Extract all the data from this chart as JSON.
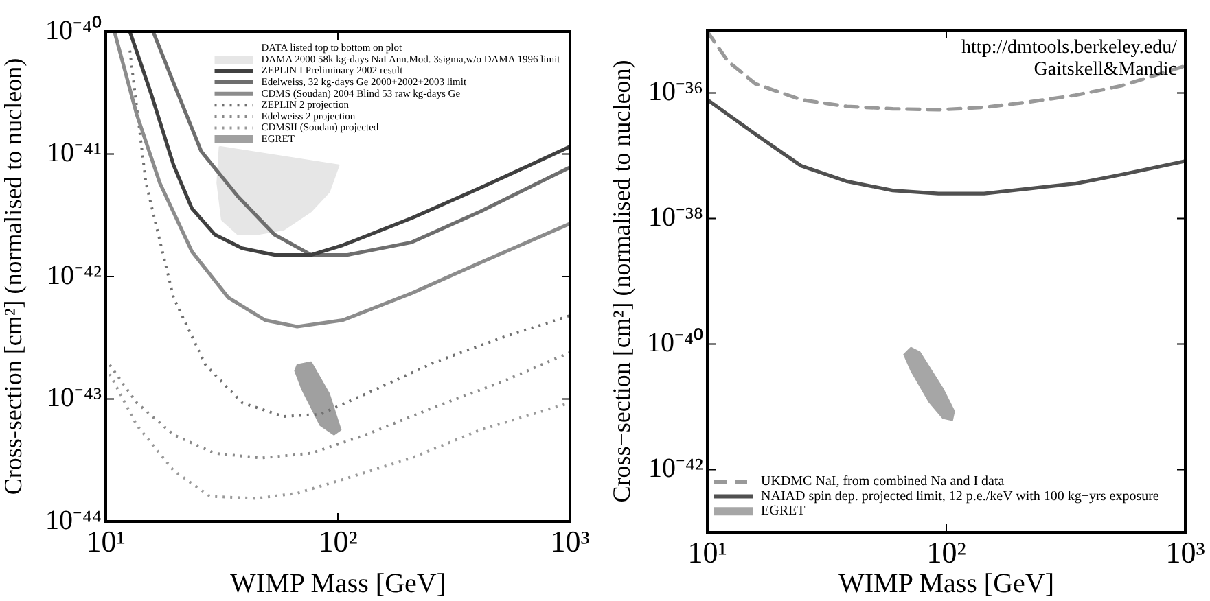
{
  "chart_data": [
    {
      "type": "line",
      "xlabel": "WIMP Mass [GeV]",
      "ylabel": "Cross-section [cm²] (normalised to nucleon)",
      "legend_title": "DATA listed top to bottom on plot",
      "log": "xy",
      "grid": false,
      "legend": "top right",
      "xlim": [
        10,
        1000
      ],
      "xticks": [
        {
          "value": 10,
          "label": "10¹"
        },
        {
          "value": 100,
          "label": "10²"
        },
        {
          "value": 1000,
          "label": "10³"
        }
      ],
      "ylim": [
        1e-44,
        1e-40
      ],
      "yticks": [
        {
          "value": 1e-44,
          "label": "10⁻⁴⁴"
        },
        {
          "value": 1e-43,
          "label": "10⁻⁴³"
        },
        {
          "value": 1e-42,
          "label": "10⁻⁴²"
        },
        {
          "value": 1e-41,
          "label": "10⁻⁴¹"
        },
        {
          "value": 1e-40,
          "label": "10⁻⁴⁰"
        }
      ],
      "series": [
        {
          "name": "DAMA 2000 58k kg-days NaI Ann.Mod. 3sigma,w/o DAMA 1996 limit",
          "type": "area",
          "color": "#e6e6e6",
          "x": [
            30.9,
            101,
            91.8,
            76.7,
            58.3,
            44.5,
            37.1,
            31.6,
            30.2,
            30.9
          ],
          "values": [
            1.15e-41,
            8.1e-42,
            4.9e-42,
            3.4e-42,
            2.4e-42,
            2.2e-42,
            2.2e-42,
            2.9e-42,
            5.8e-42,
            1.15e-41
          ]
        },
        {
          "name": "ZEPLIN I Preliminary 2002 result",
          "line_style": "solid",
          "color": "#404040",
          "x": [
            12.7,
            15.6,
            19.6,
            23.5,
            29.5,
            38.7,
            53.3,
            76.7,
            105,
            208,
            412,
            1000
          ],
          "values": [
            1e-40,
            3.2e-41,
            8.1e-42,
            3.6e-42,
            2.2e-42,
            1.7e-42,
            1.5e-42,
            1.5e-42,
            1.8e-42,
            3e-42,
            5.3e-42,
            1.15e-41
          ]
        },
        {
          "name": "Edelweiss, 32 kg-days Ge 2000+2002+2003 limit",
          "line_style": "solid",
          "color": "#6e6e6e",
          "x": [
            16.0,
            19.6,
            25.8,
            37.1,
            53.3,
            76.7,
            110,
            208,
            412,
            1000
          ],
          "values": [
            1e-40,
            3.8e-41,
            1.05e-41,
            4.5e-42,
            2.2e-42,
            1.5e-42,
            1.5e-42,
            1.9e-42,
            3.4e-42,
            7.8e-42
          ]
        },
        {
          "name": "CDMS (Soudan) 2004 Blind 53 raw kg-days Ge",
          "line_style": "solid",
          "color": "#8c8c8c",
          "x": [
            10.9,
            13.6,
            17.1,
            23.5,
            33.8,
            48.6,
            66.8,
            105,
            208,
            412,
            1000
          ],
          "values": [
            1e-40,
            2.1e-41,
            5.8e-42,
            1.6e-42,
            6.7e-43,
            4.4e-43,
            3.9e-43,
            4.4e-43,
            7.3e-43,
            1.3e-42,
            2.7e-42
          ]
        },
        {
          "name": "ZEPLIN 2 projection",
          "line_style": "dotted",
          "color": "#707070",
          "x": [
            12.7,
            14.9,
            19.6,
            26.9,
            38.7,
            58.3,
            83.9,
            132,
            262,
            518,
            1000
          ],
          "values": [
            7e-41,
            5.8e-42,
            6.7e-43,
            1.9e-43,
            9.3e-44,
            7.2e-44,
            7.5e-44,
            1.1e-43,
            2e-43,
            3.2e-43,
            4.8e-43
          ]
        },
        {
          "name": "Edelweiss 2 projection",
          "line_style": "dotted",
          "color": "#8a8a8a",
          "x": [
            10.4,
            13.6,
            19.6,
            29.5,
            46.5,
            76.7,
            132,
            262,
            518,
            1000
          ],
          "values": [
            1.9e-43,
            9.3e-44,
            5.1e-44,
            3.6e-44,
            3.3e-44,
            3.6e-44,
            5.1e-44,
            8.6e-44,
            1.4e-43,
            2.4e-43
          ]
        },
        {
          "name": "CDMSII (Soudan) projected",
          "line_style": "dotted",
          "color": "#9a9a9a",
          "x": [
            10.4,
            13.6,
            19.6,
            28.2,
            44.5,
            66.8,
            105,
            208,
            412,
            1000
          ],
          "values": [
            1.6e-43,
            6.1e-44,
            2.6e-44,
            1.6e-44,
            1.54e-44,
            1.7e-44,
            2.2e-44,
            3.3e-44,
            5.6e-44,
            9.3e-44
          ]
        },
        {
          "name": "EGRET",
          "type": "area",
          "color": "#a0a0a0",
          "x": [
            66.8,
            76.7,
            91.8,
            103,
            96.2,
            83.9,
            70.0,
            65.3,
            66.8
          ],
          "values": [
            1.9e-43,
            2e-43,
            1.1e-43,
            5.6e-44,
            5.1e-44,
            6.1e-44,
            1.2e-43,
            1.7e-43,
            1.9e-43
          ]
        }
      ]
    },
    {
      "type": "line",
      "xlabel": "WIMP Mass [GeV]",
      "ylabel": "Cross−section [cm²] (normalised to nucleon)",
      "log": "xy",
      "grid": false,
      "legend": "bottom left",
      "annotations": [
        "http://dmtools.berkeley.edu/",
        "Gaitskell&Mandic"
      ],
      "xlim": [
        10,
        1000
      ],
      "xticks": [
        {
          "value": 10,
          "label": "10¹"
        },
        {
          "value": 100,
          "label": "10²"
        },
        {
          "value": 1000,
          "label": "10³"
        }
      ],
      "ylim": [
        1e-43,
        1e-35
      ],
      "yticks": [
        {
          "value": 1e-42,
          "label": "10⁻⁴²"
        },
        {
          "value": 1e-40,
          "label": "10⁻⁴⁰"
        },
        {
          "value": 1e-38,
          "label": "10⁻³⁸"
        },
        {
          "value": 1e-36,
          "label": "10⁻³⁶"
        }
      ],
      "series": [
        {
          "name": "UKDMC NaI, from combined Na and I data",
          "line_style": "dashed",
          "color": "#999999",
          "x": [
            10,
            12.2,
            15.9,
            24.7,
            38.4,
            59.6,
            92.7,
            144,
            223,
            347,
            540,
            1000
          ],
          "values": [
            9.5e-36,
            3.2e-36,
            1.4e-36,
            7.8e-37,
            6.1e-37,
            5.6e-37,
            5.4e-37,
            5.9e-37,
            7.2e-37,
            9.2e-37,
            1.3e-36,
            2.7e-36
          ]
        },
        {
          "name": "NAIAD spin dep. projected limit, 12 p.e./keV with 100 kg−yrs exposure",
          "line_style": "solid",
          "color": "#505050",
          "x": [
            10,
            15.9,
            24.7,
            38.4,
            59.6,
            92.7,
            144,
            223,
            347,
            540,
            1000
          ],
          "values": [
            7.8e-37,
            2.2e-37,
            6.9e-38,
            3.9e-38,
            2.8e-38,
            2.5e-38,
            2.5e-38,
            3e-38,
            3.6e-38,
            5e-38,
            8.2e-38
          ]
        },
        {
          "name": "EGRET",
          "type": "area",
          "color": "#a6a6a6",
          "x": [
            71.1,
            77.6,
            96.8,
            108,
            106,
            96.8,
            84.7,
            71.1,
            66.5,
            71.1
          ],
          "values": [
            8.8e-41,
            7.4e-41,
            1.95e-41,
            8.5e-42,
            6.1e-42,
            6.6e-42,
            1.2e-41,
            3.8e-41,
            6.8e-41,
            8.8e-41
          ]
        }
      ]
    }
  ]
}
